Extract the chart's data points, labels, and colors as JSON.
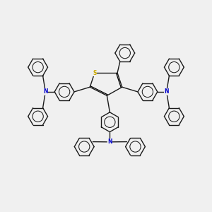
{
  "background_color": "#f0f0f0",
  "bond_color": "#1a1a1a",
  "S_color": "#ccaa00",
  "N_color": "#0000cc",
  "lw": 1.0,
  "figsize": [
    3.0,
    3.0
  ],
  "dpi": 100,
  "xlim": [
    -5.5,
    5.5
  ],
  "ylim": [
    -5.5,
    5.0
  ]
}
